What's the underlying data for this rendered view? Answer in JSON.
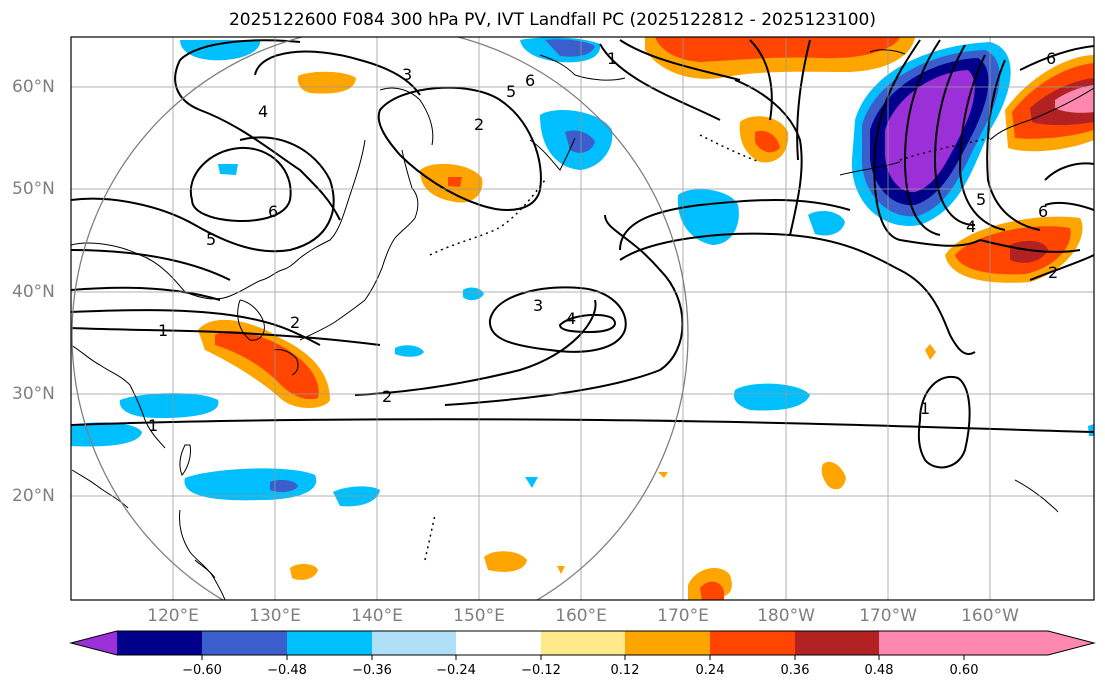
{
  "title": "2025122600 F084 300 hPa PV, IVT Landfall PC (2025122812 - 2025123100)",
  "lat_labels": [
    "60°N",
    "50°N",
    "40°N",
    "30°N",
    "20°N"
  ],
  "lon_labels": [
    "120°E",
    "130°E",
    "140°E",
    "150°E",
    "160°E",
    "170°E",
    "180°W",
    "170°W",
    "160°W"
  ],
  "colorbar": {
    "ticks": [
      "−0.60",
      "−0.48",
      "−0.36",
      "−0.24",
      "−0.12",
      "0.12",
      "0.24",
      "0.36",
      "0.48",
      "0.60"
    ],
    "colors": [
      "#9b30d9",
      "#00008b",
      "#3a5fcd",
      "#00bfff",
      "#b0e0f8",
      "#ffffff",
      "#ffe98a",
      "#ffa500",
      "#ff4500",
      "#b22222",
      "#ff88b0"
    ]
  },
  "contour_labels": [
    "1",
    "2",
    "3",
    "4",
    "5",
    "6"
  ]
}
